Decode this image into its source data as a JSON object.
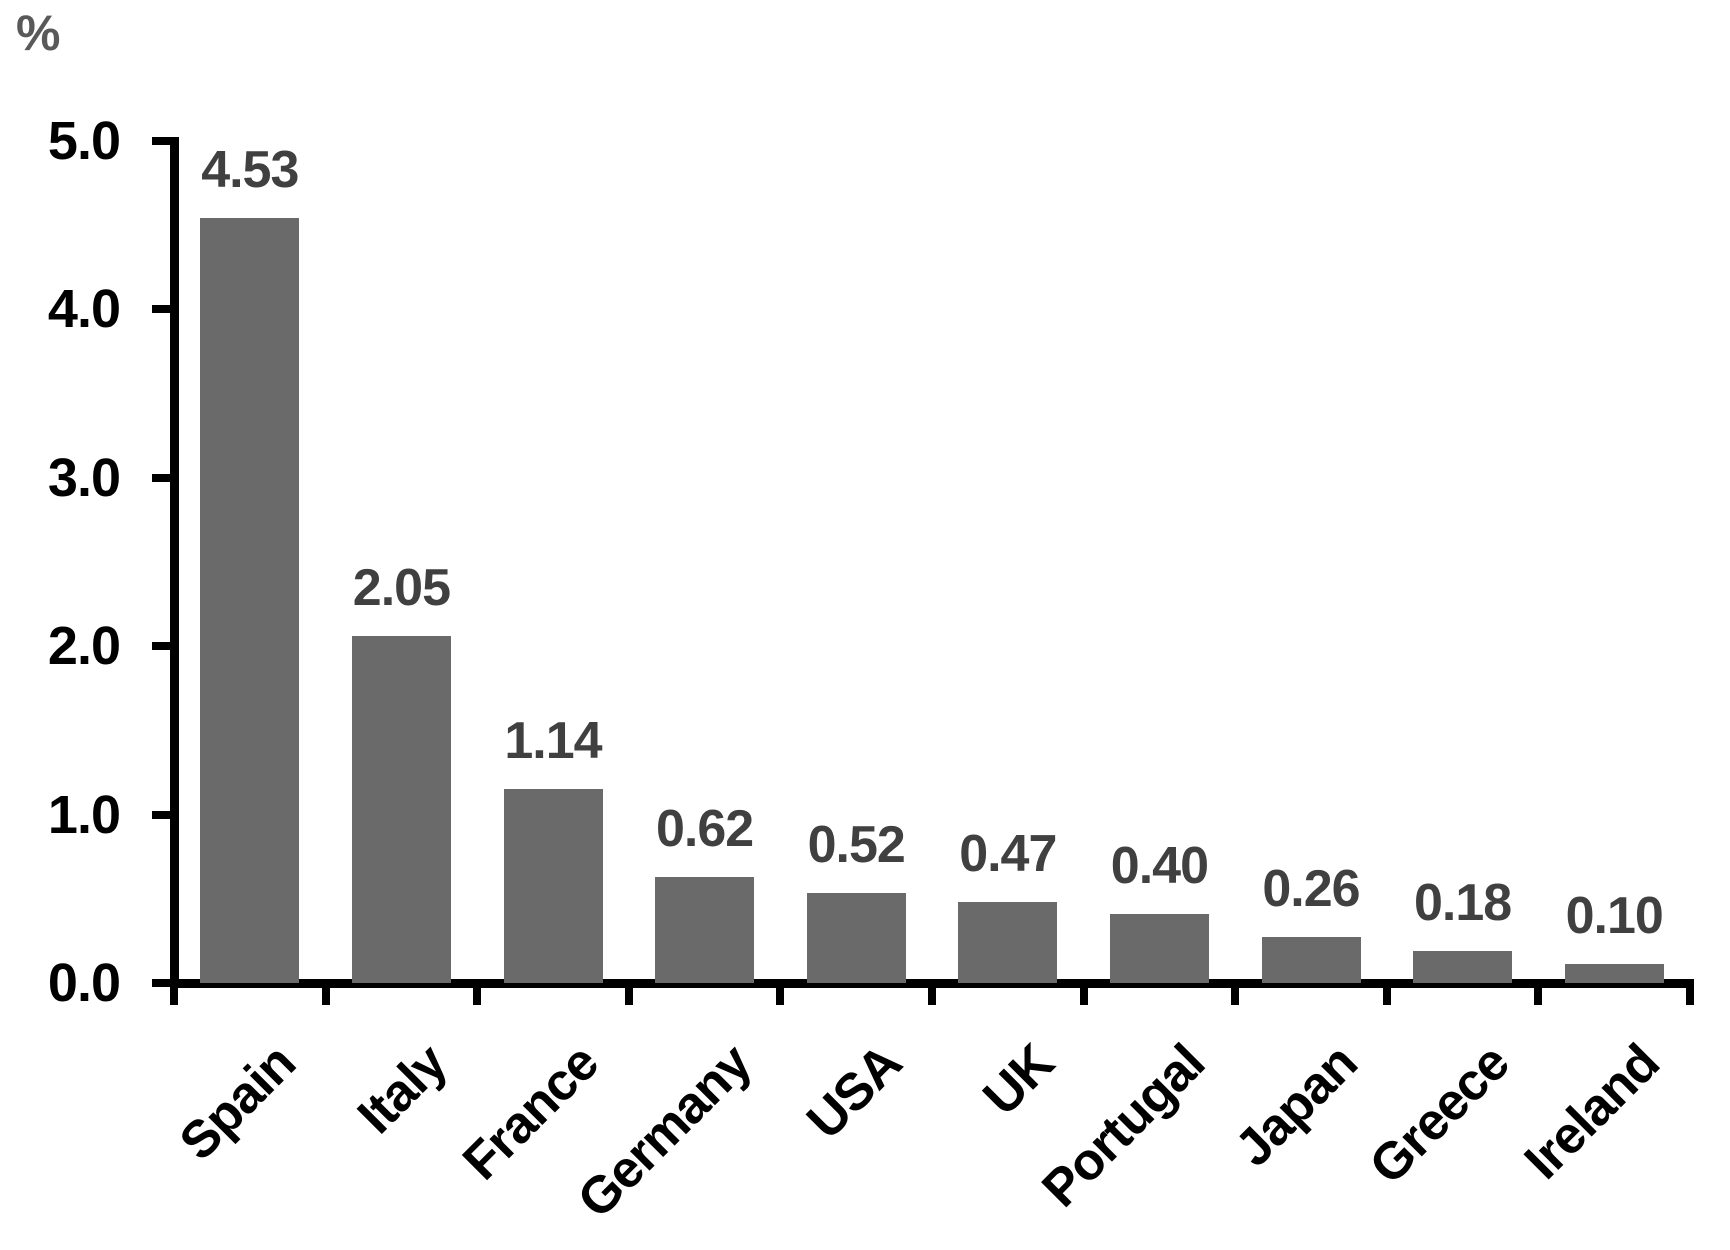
{
  "chart_data": {
    "type": "bar",
    "title": "",
    "ylabel": "%",
    "xlabel": "",
    "categories": [
      "Spain",
      "Italy",
      "France",
      "Germany",
      "USA",
      "UK",
      "Portugal",
      "Japan",
      "Greece",
      "Ireland"
    ],
    "values": [
      4.53,
      2.05,
      1.14,
      0.62,
      0.52,
      0.47,
      0.4,
      0.26,
      0.18,
      0.1
    ],
    "value_labels": [
      "4.53",
      "2.05",
      "1.14",
      "0.62",
      "0.52",
      "0.47",
      "0.40",
      "0.26",
      "0.18",
      "0.10"
    ],
    "ylim": [
      0,
      5
    ],
    "yticks": [
      {
        "value": 0,
        "label": "0.0"
      },
      {
        "value": 1,
        "label": "1.0"
      },
      {
        "value": 2,
        "label": "2.0"
      },
      {
        "value": 3,
        "label": "3.0"
      },
      {
        "value": 4,
        "label": "4.0"
      },
      {
        "value": 5,
        "label": "5.0"
      }
    ],
    "grid": false,
    "legend_position": "none",
    "colors": {
      "bar": "#6a6a6a",
      "value_label": "#404040",
      "axis": "#000000",
      "tick_label": "#000000",
      "ylabel": "#595959",
      "background": "#ffffff"
    }
  }
}
